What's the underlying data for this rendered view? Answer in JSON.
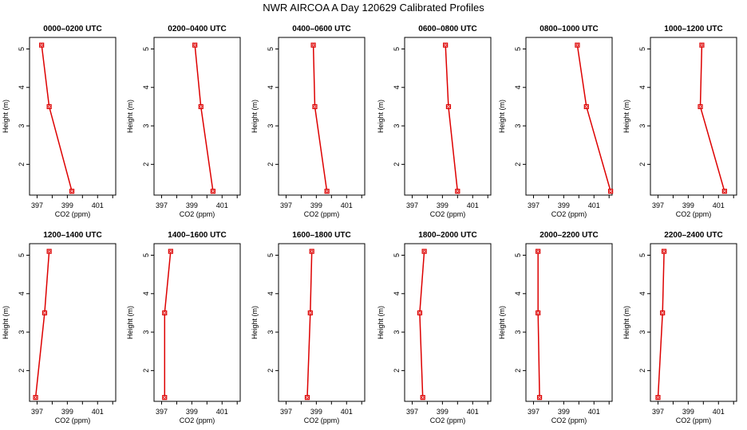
{
  "title": "NWR AIRCOA A  Day 120629  Calibrated Profiles",
  "colors": {
    "series": "#dd0000",
    "axis": "#000000"
  },
  "chart_data": [
    {
      "type": "line",
      "title": "0000–0200 UTC",
      "xlabel": "CO2 (ppm)",
      "ylabel": "Height (m)",
      "xlim": [
        396.5,
        402.2
      ],
      "ylim": [
        1.2,
        5.3
      ],
      "xticks": [
        "397",
        "399",
        "401"
      ],
      "yticks": [
        "2",
        "3",
        "4",
        "5"
      ],
      "x": [
        397.3,
        397.8,
        399.3
      ],
      "y": [
        5.1,
        3.5,
        1.3
      ]
    },
    {
      "type": "line",
      "title": "0200–0400 UTC",
      "xlabel": "CO2 (ppm)",
      "ylabel": "Height (m)",
      "xlim": [
        396.5,
        402.2
      ],
      "ylim": [
        1.2,
        5.3
      ],
      "xticks": [
        "397",
        "399",
        "401"
      ],
      "yticks": [
        "2",
        "3",
        "4",
        "5"
      ],
      "x": [
        399.2,
        399.6,
        400.4
      ],
      "y": [
        5.1,
        3.5,
        1.3
      ]
    },
    {
      "type": "line",
      "title": "0400–0600 UTC",
      "xlabel": "CO2 (ppm)",
      "ylabel": "Height (m)",
      "xlim": [
        396.5,
        402.2
      ],
      "ylim": [
        1.2,
        5.3
      ],
      "xticks": [
        "397",
        "399",
        "401"
      ],
      "yticks": [
        "2",
        "3",
        "4",
        "5"
      ],
      "x": [
        398.8,
        398.9,
        399.7
      ],
      "y": [
        5.1,
        3.5,
        1.3
      ]
    },
    {
      "type": "line",
      "title": "0600–0800 UTC",
      "xlabel": "CO2 (ppm)",
      "ylabel": "Height (m)",
      "xlim": [
        396.5,
        402.2
      ],
      "ylim": [
        1.2,
        5.3
      ],
      "xticks": [
        "397",
        "399",
        "401"
      ],
      "yticks": [
        "2",
        "3",
        "4",
        "5"
      ],
      "x": [
        399.2,
        399.4,
        400.0
      ],
      "y": [
        5.1,
        3.5,
        1.3
      ]
    },
    {
      "type": "line",
      "title": "0800–1000 UTC",
      "xlabel": "CO2 (ppm)",
      "ylabel": "Height (m)",
      "xlim": [
        396.5,
        402.2
      ],
      "ylim": [
        1.2,
        5.3
      ],
      "xticks": [
        "397",
        "399",
        "401"
      ],
      "yticks": [
        "2",
        "3",
        "4",
        "5"
      ],
      "x": [
        399.9,
        400.5,
        402.1
      ],
      "y": [
        5.1,
        3.5,
        1.3
      ]
    },
    {
      "type": "line",
      "title": "1000–1200 UTC",
      "xlabel": "CO2 (ppm)",
      "ylabel": "Height (m)",
      "xlim": [
        396.5,
        402.2
      ],
      "ylim": [
        1.2,
        5.3
      ],
      "xticks": [
        "397",
        "399",
        "401"
      ],
      "yticks": [
        "2",
        "3",
        "4",
        "5"
      ],
      "x": [
        399.9,
        399.8,
        401.4
      ],
      "y": [
        5.1,
        3.5,
        1.3
      ]
    },
    {
      "type": "line",
      "title": "1200–1400 UTC",
      "xlabel": "CO2 (ppm)",
      "ylabel": "Height (m)",
      "xlim": [
        396.5,
        402.2
      ],
      "ylim": [
        1.2,
        5.3
      ],
      "xticks": [
        "397",
        "399",
        "401"
      ],
      "yticks": [
        "2",
        "3",
        "4",
        "5"
      ],
      "x": [
        397.8,
        397.5,
        396.9
      ],
      "y": [
        5.1,
        3.5,
        1.3
      ]
    },
    {
      "type": "line",
      "title": "1400–1600 UTC",
      "xlabel": "CO2 (ppm)",
      "ylabel": "Height (m)",
      "xlim": [
        396.5,
        402.2
      ],
      "ylim": [
        1.2,
        5.3
      ],
      "xticks": [
        "397",
        "399",
        "401"
      ],
      "yticks": [
        "2",
        "3",
        "4",
        "5"
      ],
      "x": [
        397.6,
        397.2,
        397.2
      ],
      "y": [
        5.1,
        3.5,
        1.3
      ]
    },
    {
      "type": "line",
      "title": "1600–1800 UTC",
      "xlabel": "CO2 (ppm)",
      "ylabel": "Height (m)",
      "xlim": [
        396.5,
        402.2
      ],
      "ylim": [
        1.2,
        5.3
      ],
      "xticks": [
        "397",
        "399",
        "401"
      ],
      "yticks": [
        "2",
        "3",
        "4",
        "5"
      ],
      "x": [
        398.7,
        398.6,
        398.4
      ],
      "y": [
        5.1,
        3.5,
        1.3
      ]
    },
    {
      "type": "line",
      "title": "1800–2000 UTC",
      "xlabel": "CO2 (ppm)",
      "ylabel": "Height (m)",
      "xlim": [
        396.5,
        402.2
      ],
      "ylim": [
        1.2,
        5.3
      ],
      "xticks": [
        "397",
        "399",
        "401"
      ],
      "yticks": [
        "2",
        "3",
        "4",
        "5"
      ],
      "x": [
        397.8,
        397.5,
        397.7
      ],
      "y": [
        5.1,
        3.5,
        1.3
      ]
    },
    {
      "type": "line",
      "title": "2000–2200 UTC",
      "xlabel": "CO2 (ppm)",
      "ylabel": "Height (m)",
      "xlim": [
        396.5,
        402.2
      ],
      "ylim": [
        1.2,
        5.3
      ],
      "xticks": [
        "397",
        "399",
        "401"
      ],
      "yticks": [
        "2",
        "3",
        "4",
        "5"
      ],
      "x": [
        397.3,
        397.3,
        397.4
      ],
      "y": [
        5.1,
        3.5,
        1.3
      ]
    },
    {
      "type": "line",
      "title": "2200–2400 UTC",
      "xlabel": "CO2 (ppm)",
      "ylabel": "Height (m)",
      "xlim": [
        396.5,
        402.2
      ],
      "ylim": [
        1.2,
        5.3
      ],
      "xticks": [
        "397",
        "399",
        "401"
      ],
      "yticks": [
        "2",
        "3",
        "4",
        "5"
      ],
      "x": [
        397.4,
        397.3,
        397.0
      ],
      "y": [
        5.1,
        3.5,
        1.3
      ]
    }
  ]
}
